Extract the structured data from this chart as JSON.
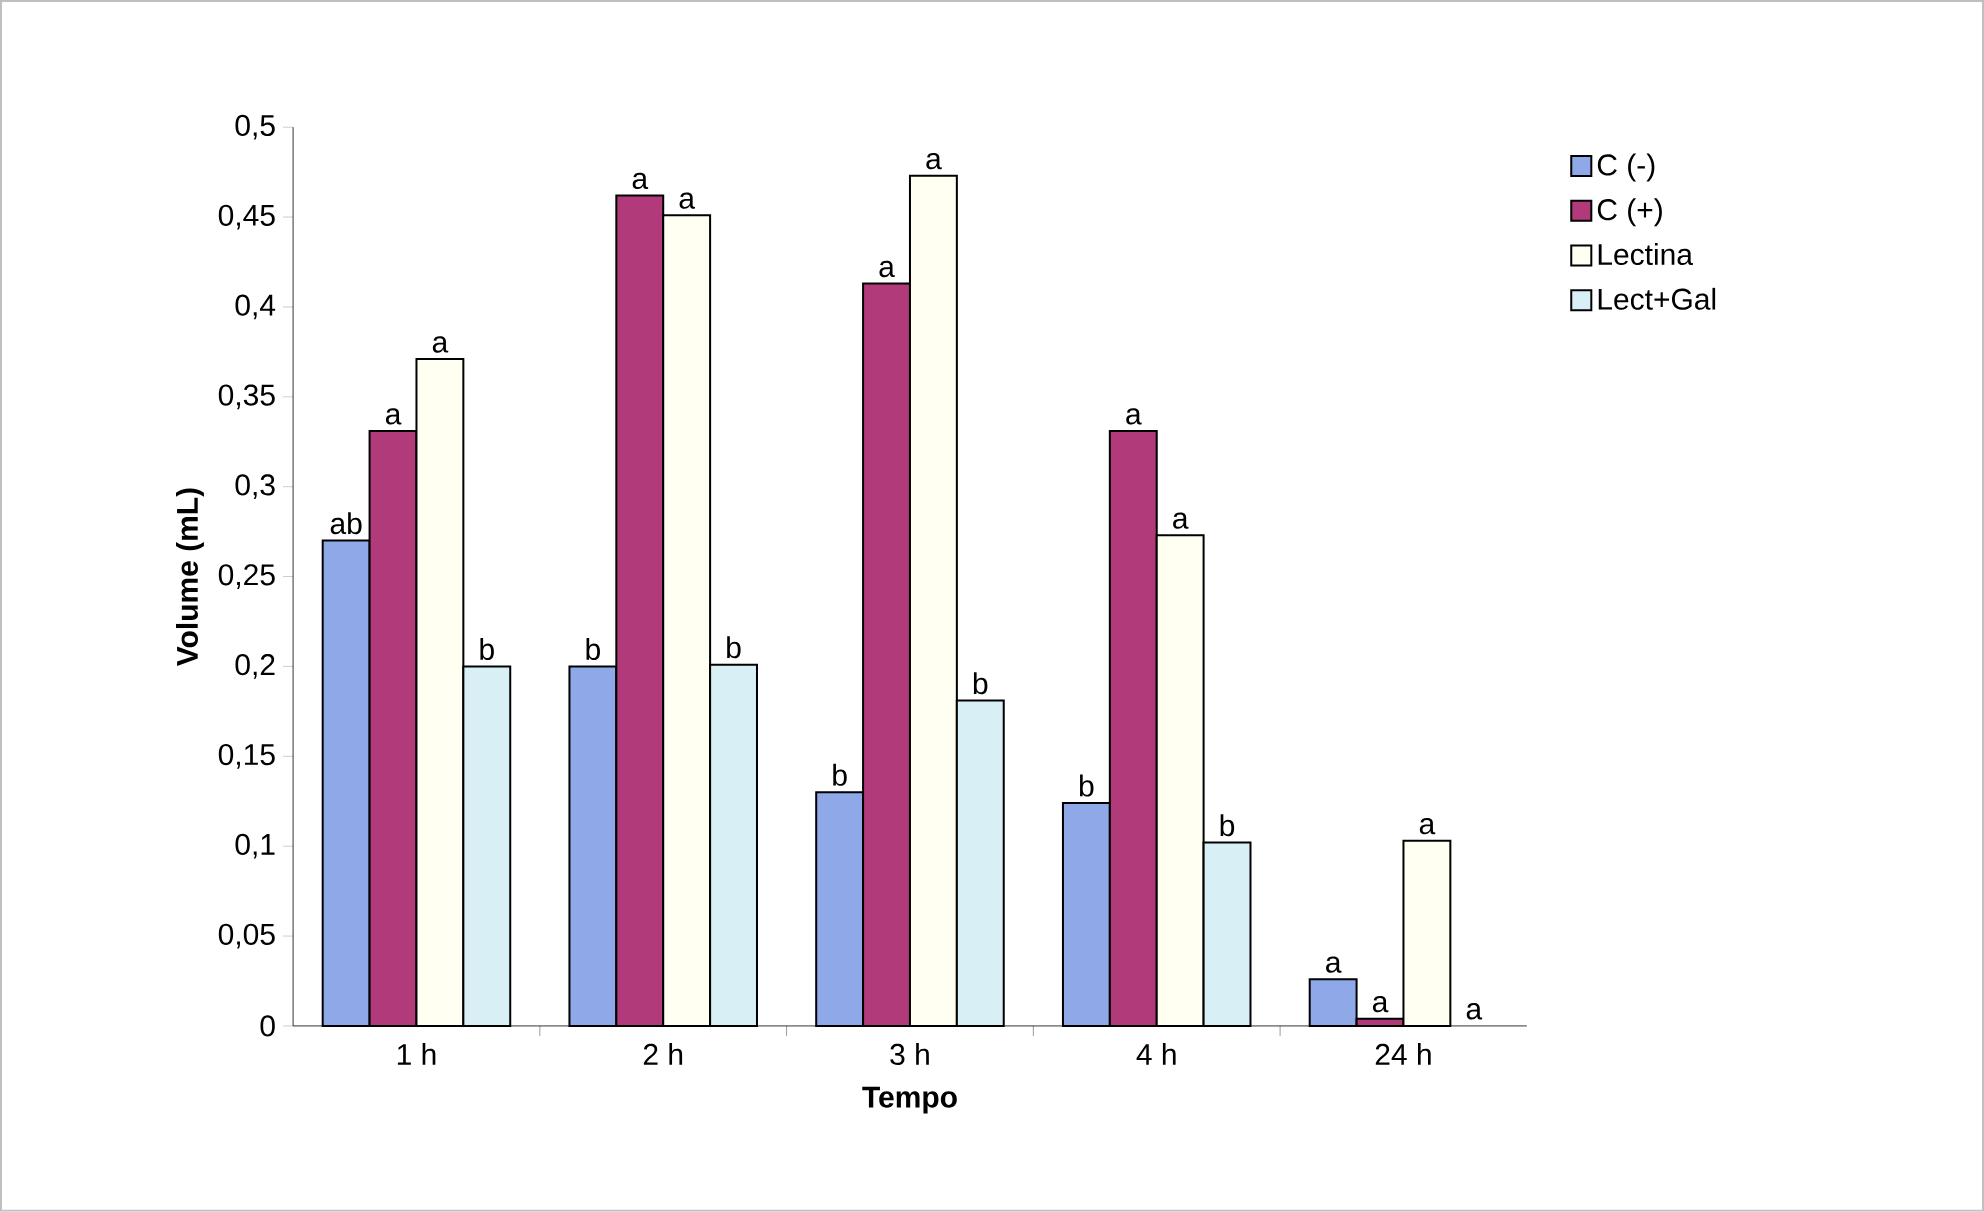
{
  "chart_data": {
    "type": "bar",
    "xlabel": "Tempo",
    "ylabel": "Volume (mL)",
    "categories": [
      "1 h",
      "2 h",
      "3 h",
      "4 h",
      "24 h"
    ],
    "series": [
      {
        "name": "C  (-)",
        "color": "#8fa8e8",
        "values": [
          0.27,
          0.2,
          0.13,
          0.124,
          0.026
        ]
      },
      {
        "name": "C  (+)",
        "color": "#b03a7a",
        "values": [
          0.331,
          0.462,
          0.413,
          0.331,
          0.004
        ]
      },
      {
        "name": "Lectina",
        "color": "#fffff2",
        "values": [
          0.371,
          0.451,
          0.473,
          0.273,
          0.103
        ]
      },
      {
        "name": "Lect+Gal",
        "color": "#d8f0f5",
        "values": [
          0.2,
          0.201,
          0.181,
          0.102,
          null
        ]
      }
    ],
    "ylim": [
      0,
      0.5
    ],
    "yticks": [
      0,
      {
        "value": 0.05,
        "label": "0,05"
      },
      {
        "value": 0.1,
        "label": "0,1"
      },
      {
        "value": 0.15,
        "label": "0,15"
      },
      {
        "value": 0.2,
        "label": "0,2"
      },
      {
        "value": 0.25,
        "label": "0,25"
      },
      {
        "value": 0.3,
        "label": "0,3"
      },
      {
        "value": 0.35,
        "label": "0,35"
      },
      {
        "value": 0.4,
        "label": "0,4"
      },
      {
        "value": 0.45,
        "label": "0,45"
      },
      {
        "value": 0.5,
        "label": "0,5"
      }
    ],
    "legend": "top right",
    "grid": false,
    "annotations": [
      {
        "text": "ab",
        "x": "1 h",
        "y": 0.27
      },
      {
        "text": "a",
        "x": "1 h",
        "y": 0.331
      },
      {
        "text": "a",
        "x": "1 h",
        "y": 0.371
      },
      {
        "text": "b",
        "x": "1 h",
        "y": 0.2
      },
      {
        "text": "b",
        "x": "2 h",
        "y": 0.2
      },
      {
        "text": "a",
        "x": "2 h",
        "y": 0.462
      },
      {
        "text": "a",
        "x": "2 h",
        "y": 0.451
      },
      {
        "text": "b",
        "x": "2 h",
        "y": 0.201
      },
      {
        "text": "b",
        "x": "3 h",
        "y": 0.13
      },
      {
        "text": "a",
        "x": "3 h",
        "y": 0.413
      },
      {
        "text": "a",
        "x": "3 h",
        "y": 0.473
      },
      {
        "text": "b",
        "x": "3 h",
        "y": 0.181
      },
      {
        "text": "b",
        "x": "4 h",
        "y": 0.124
      },
      {
        "text": "a",
        "x": "4 h",
        "y": 0.331
      },
      {
        "text": "a",
        "x": "4 h",
        "y": 0.273
      },
      {
        "text": "b",
        "x": "4 h",
        "y": 0.102
      },
      {
        "text": "a",
        "x": "24 h",
        "y": 0.026
      },
      {
        "text": "a",
        "x": "24 h",
        "y": 0.004
      },
      {
        "text": "a",
        "x": "24 h",
        "y": 0.103
      },
      {
        "text": "a",
        "x": "24 h",
        "y": 0
      }
    ]
  }
}
